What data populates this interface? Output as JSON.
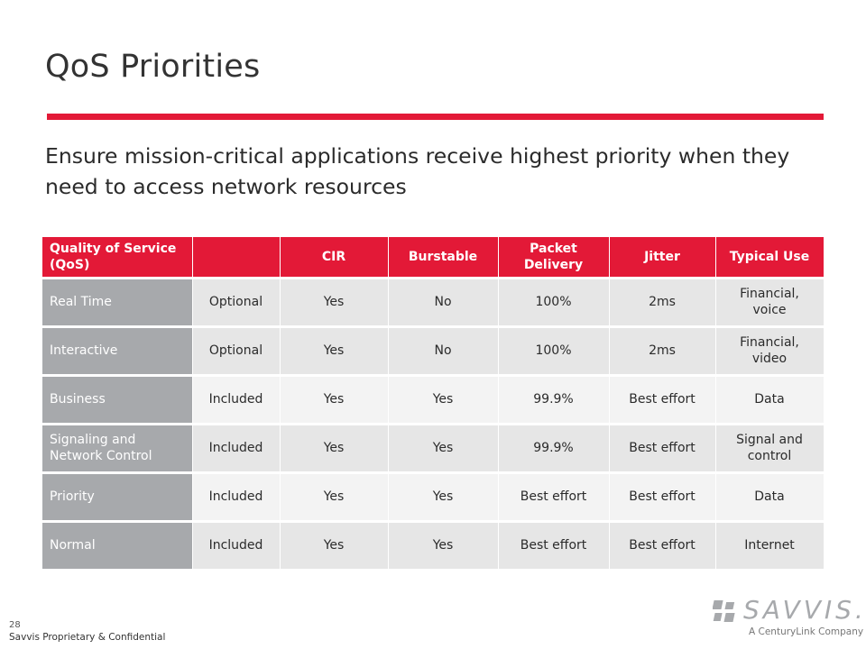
{
  "slide": {
    "title": "QoS Priorities",
    "subtitle": "Ensure mission-critical applications receive highest priority when they need to access network resources",
    "page_number": "28",
    "footer": "Savvis Proprietary & Confidential"
  },
  "table": {
    "headers": [
      "Quality of Service (QoS)",
      "",
      "CIR",
      "Burstable",
      "Packet Delivery",
      "Jitter",
      "Typical Use"
    ],
    "rows": [
      [
        "Real Time",
        "Optional",
        "Yes",
        "No",
        "100%",
        "2ms",
        "Financial, voice"
      ],
      [
        "Interactive",
        "Optional",
        "Yes",
        "No",
        "100%",
        "2ms",
        "Financial, video"
      ],
      [
        "Business",
        "Included",
        "Yes",
        "Yes",
        "99.9%",
        "Best effort",
        "Data"
      ],
      [
        "Signaling and Network Control",
        "Included",
        "Yes",
        "Yes",
        "99.9%",
        "Best effort",
        "Signal and control"
      ],
      [
        "Priority",
        "Included",
        "Yes",
        "Yes",
        "Best effort",
        "Best effort",
        "Data"
      ],
      [
        "Normal",
        "Included",
        "Yes",
        "Yes",
        "Best effort",
        "Best effort",
        "Internet"
      ]
    ]
  },
  "logo": {
    "wordmark": "SAVVIS.",
    "tagline": "A CenturyLink Company",
    "color": "#a7a9ac"
  },
  "colors": {
    "accent": "#e31937",
    "row_header": "#a7a9ac",
    "row_odd": "#e6e6e6",
    "row_even": "#f3f3f3"
  }
}
